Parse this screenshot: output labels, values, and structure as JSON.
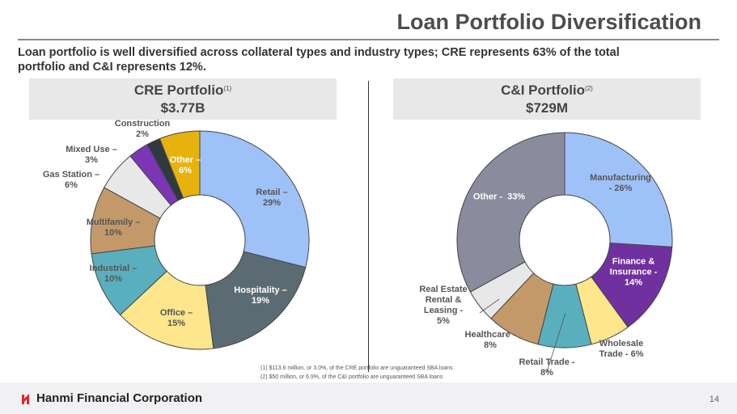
{
  "header": {
    "title": "Loan Portfolio Diversification",
    "subtitle": "Loan portfolio is well diversified across collateral types and industry types; CRE represents 63% of the total portfolio and C&I represents 12%."
  },
  "chart_data": [
    {
      "type": "pie",
      "title": "CRE Portfolio",
      "footnote_ref": "(1)",
      "total": "$3.77B",
      "categories": [
        "Retail",
        "Hospitality",
        "Office",
        "Industrial",
        "Multifamily",
        "Gas Station",
        "Mixed Use",
        "Construction",
        "Other"
      ],
      "values": [
        29,
        19,
        15,
        10,
        10,
        6,
        3,
        2,
        6
      ],
      "labels": [
        "Retail –\n29%",
        "Hospitality –\n19%",
        "Office –\n15%",
        "Industrial –\n10%",
        "Multifamily –\n10%",
        "Gas Station –\n6%",
        "Mixed Use –\n3%",
        "Construction\n2%",
        "Other –\n6%"
      ],
      "colors": [
        "#9ec2f7",
        "#5c6b73",
        "#fde68c",
        "#5aafbf",
        "#c4996a",
        "#e8e8e8",
        "#7b35b5",
        "#2f3a40",
        "#e8b20e"
      ]
    },
    {
      "type": "pie",
      "title": "C&I Portfolio",
      "footnote_ref": "(2)",
      "total": "$729M",
      "categories": [
        "Manufacturing",
        "Finance & Insurance",
        "Wholesale Trade",
        "Retail Trade",
        "Healthcare",
        "Real Estate Rental & Leasing",
        "Other"
      ],
      "values": [
        26,
        14,
        6,
        8,
        8,
        5,
        33
      ],
      "labels": [
        "Manufacturing\n- 26%",
        "Finance &\nInsurance -\n14%",
        "Wholesale\nTrade - 6%",
        "Retail Trade -\n8%",
        "Healthcare -\n8%",
        "Real Estate\nRental &\nLeasing -\n5%",
        "Other -  33%"
      ],
      "colors": [
        "#9ec2f7",
        "#7030a0",
        "#fde68c",
        "#5aafbf",
        "#c4996a",
        "#e8e8e8",
        "#8a8c9e"
      ]
    }
  ],
  "footnotes": [
    "(1)   $113.6 million, or 3.0%, of the CRE portfolio are unguaranteed SBA loans",
    "(2)   $50 million, or 6.9%, of the C&I portfolio are unguaranteed SBA loans"
  ],
  "footer": {
    "company": "Hanmi Financial Corporation",
    "page": "14"
  }
}
